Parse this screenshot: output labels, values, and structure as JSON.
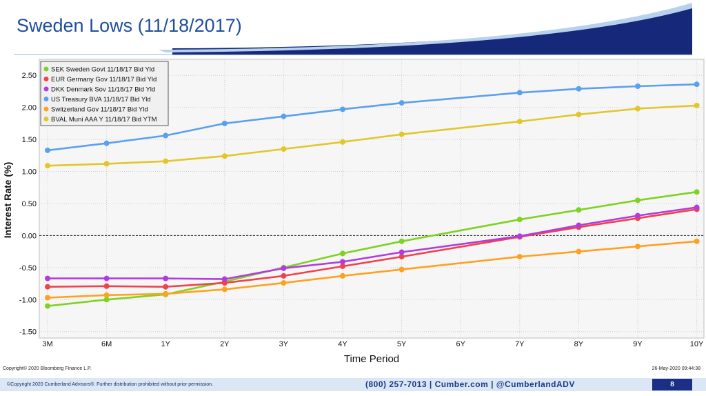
{
  "header": {
    "title": "Sweden Lows (11/18/2017)"
  },
  "footer": {
    "bloomberg_copyright": "Copyright© 2020 Bloomberg Finance L.P.",
    "date_stamp": "26-May-2020 09:44:38",
    "cumberland_copyright": "©Copyright 2020 Cumberland Advisors®. Further distribution prohibited without prior permission.",
    "contact": "(800) 257-7013  |  Cumber.com  |  @CumberlandADV",
    "page_number": "8"
  },
  "colors": {
    "title": "#1f4e9e",
    "footer_bar": "#dbe7f4",
    "page_box": "#1b2f86"
  },
  "chart_data": {
    "type": "line",
    "title": "",
    "xlabel": "Time Period",
    "ylabel": "Interest Rate (%)",
    "ylim": [
      -1.6,
      2.75
    ],
    "yticks": [
      -1.5,
      -1.0,
      -0.5,
      0.0,
      0.5,
      1.0,
      1.5,
      2.0,
      2.5
    ],
    "ytick_labels": [
      "-1.50",
      "-1.00",
      "-0.50",
      "0.00",
      "0.50",
      "1.00",
      "1.50",
      "2.00",
      "2.50"
    ],
    "categories": [
      "3M",
      "6M",
      "1Y",
      "2Y",
      "3Y",
      "4Y",
      "5Y",
      "6Y",
      "7Y",
      "8Y",
      "9Y",
      "10Y"
    ],
    "grid": true,
    "legend_position": "top-left",
    "reference_line": 0.0,
    "series": [
      {
        "name": "SEK Sweden Govt 11/18/17 Bid Yld",
        "color": "#7ed321",
        "values": [
          -1.1,
          -1.0,
          -0.92,
          -0.72,
          -0.5,
          -0.28,
          -0.09,
          null,
          0.25,
          0.4,
          0.55,
          0.68
        ]
      },
      {
        "name": "EUR Germany Gov 11/18/17 Bid Yld",
        "color": "#f0424a",
        "values": [
          -0.8,
          -0.79,
          -0.8,
          -0.74,
          -0.63,
          -0.48,
          -0.33,
          null,
          -0.02,
          0.13,
          0.27,
          0.41
        ]
      },
      {
        "name": "DKK Denmark Sov 11/18/17 Bid Yld",
        "color": "#b23be0",
        "values": [
          -0.67,
          -0.67,
          -0.67,
          -0.68,
          -0.51,
          -0.41,
          -0.26,
          null,
          -0.01,
          0.16,
          0.31,
          0.44
        ]
      },
      {
        "name": "US Treasury BVA 11/18/17 Bid Yld",
        "color": "#5aa0f0",
        "values": [
          1.33,
          1.44,
          1.56,
          1.75,
          1.86,
          1.97,
          2.07,
          null,
          2.23,
          2.29,
          2.33,
          2.36
        ]
      },
      {
        "name": "Switzerland Gov 11/18/17 Bid Yld",
        "color": "#ffa11e",
        "values": [
          -0.97,
          -0.93,
          -0.91,
          -0.84,
          -0.74,
          -0.63,
          -0.53,
          null,
          -0.33,
          -0.25,
          -0.17,
          -0.09
        ]
      },
      {
        "name": "BVAL Muni AAA Y 11/18/17 Bid YTM",
        "color": "#e2c62a",
        "values": [
          1.09,
          1.12,
          1.16,
          1.24,
          1.35,
          1.46,
          1.58,
          null,
          1.78,
          1.89,
          1.98,
          2.03
        ]
      }
    ]
  }
}
